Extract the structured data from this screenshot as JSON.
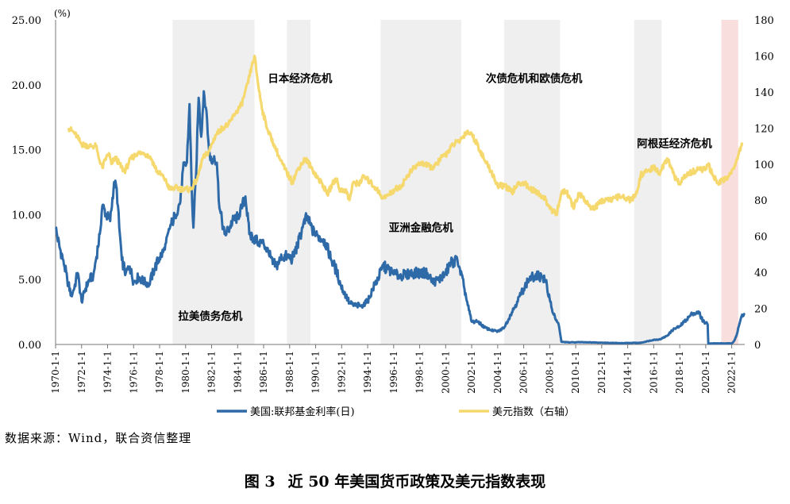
{
  "chart_data": {
    "type": "line",
    "left_unit": "(%)",
    "left_axis": {
      "ylim": [
        0,
        25
      ],
      "ticks": [
        "0.00",
        "5.00",
        "10.00",
        "15.00",
        "20.00",
        "25.00"
      ]
    },
    "right_axis": {
      "ylim": [
        0,
        180
      ],
      "ticks": [
        "0",
        "20",
        "40",
        "60",
        "80",
        "100",
        "120",
        "140",
        "160",
        "180"
      ]
    },
    "x_range": [
      1970.0,
      2023.0
    ],
    "x_ticks": [
      "1970-1-1",
      "1972-1-1",
      "1974-1-1",
      "1976-1-1",
      "1978-1-1",
      "1980-1-1",
      "1982-1-1",
      "1984-1-1",
      "1986-1-1",
      "1988-1-1",
      "1990-1-1",
      "1992-1-1",
      "1994-1-1",
      "1996-1-1",
      "1998-1-1",
      "2000-1-1",
      "2002-1-1",
      "2004-1-1",
      "2006-1-1",
      "2008-1-1",
      "2010-1-1",
      "2012-1-1",
      "2014-1-1",
      "2016-1-1",
      "2018-1-1",
      "2020-1-1",
      "2022-1-1"
    ],
    "shaded_periods": [
      {
        "start": 1979.0,
        "end": 1985.3,
        "color": "#efefef"
      },
      {
        "start": 1987.8,
        "end": 1989.6,
        "color": "#efefef"
      },
      {
        "start": 1995.0,
        "end": 2001.2,
        "color": "#efefef"
      },
      {
        "start": 2004.5,
        "end": 2008.8,
        "color": "#efefef"
      },
      {
        "start": 2014.5,
        "end": 2016.6,
        "color": "#efefef"
      },
      {
        "start": 2021.2,
        "end": 2022.5,
        "color": "#f9dede"
      }
    ],
    "annotations": [
      {
        "text": "拉美债务危机",
        "x": 1981.9,
        "y": 1.9
      },
      {
        "text": "日本经济危机",
        "x": 1988.8,
        "y": 20.2
      },
      {
        "text": "亚洲金融危机",
        "x": 1998.1,
        "y": 8.7
      },
      {
        "text": "次债危机和欧债危机",
        "x": 2006.8,
        "y": 20.2
      },
      {
        "text": "阿根廷经济危机",
        "x": 2017.6,
        "y": 15.2
      }
    ],
    "series": [
      {
        "name": "美国:联邦基金利率(日)",
        "axis": "left",
        "color": "#2e6aa8",
        "points": [
          [
            1970.0,
            9.0
          ],
          [
            1970.3,
            7.5
          ],
          [
            1970.6,
            6.5
          ],
          [
            1970.9,
            5.0
          ],
          [
            1971.2,
            3.8
          ],
          [
            1971.4,
            4.2
          ],
          [
            1971.7,
            5.5
          ],
          [
            1972.0,
            3.3
          ],
          [
            1972.3,
            4.3
          ],
          [
            1972.6,
            5.0
          ],
          [
            1972.9,
            5.3
          ],
          [
            1973.1,
            6.5
          ],
          [
            1973.4,
            8.5
          ],
          [
            1973.6,
            10.7
          ],
          [
            1973.9,
            10.0
          ],
          [
            1974.2,
            9.5
          ],
          [
            1974.5,
            12.5
          ],
          [
            1974.7,
            12.0
          ],
          [
            1974.9,
            9.0
          ],
          [
            1975.1,
            6.5
          ],
          [
            1975.4,
            5.5
          ],
          [
            1975.7,
            6.0
          ],
          [
            1976.0,
            4.8
          ],
          [
            1976.4,
            5.2
          ],
          [
            1976.8,
            4.8
          ],
          [
            1977.2,
            4.7
          ],
          [
            1977.6,
            5.8
          ],
          [
            1978.0,
            6.7
          ],
          [
            1978.4,
            7.3
          ],
          [
            1978.8,
            9.0
          ],
          [
            1979.2,
            10.0
          ],
          [
            1979.6,
            11.0
          ],
          [
            1979.8,
            13.5
          ],
          [
            1980.1,
            14.0
          ],
          [
            1980.3,
            18.5
          ],
          [
            1980.5,
            11.0
          ],
          [
            1980.6,
            9.0
          ],
          [
            1980.8,
            13.0
          ],
          [
            1981.0,
            19.0
          ],
          [
            1981.2,
            16.0
          ],
          [
            1981.4,
            19.5
          ],
          [
            1981.6,
            18.0
          ],
          [
            1981.8,
            15.0
          ],
          [
            1982.0,
            14.0
          ],
          [
            1982.2,
            14.5
          ],
          [
            1982.4,
            14.0
          ],
          [
            1982.6,
            10.5
          ],
          [
            1982.8,
            9.5
          ],
          [
            1983.0,
            8.5
          ],
          [
            1983.3,
            8.8
          ],
          [
            1983.6,
            9.5
          ],
          [
            1984.0,
            9.8
          ],
          [
            1984.3,
            10.5
          ],
          [
            1984.6,
            11.4
          ],
          [
            1984.9,
            8.5
          ],
          [
            1985.2,
            8.2
          ],
          [
            1985.6,
            7.9
          ],
          [
            1986.0,
            7.8
          ],
          [
            1986.4,
            7.0
          ],
          [
            1986.7,
            6.2
          ],
          [
            1987.0,
            6.1
          ],
          [
            1987.4,
            6.7
          ],
          [
            1987.8,
            6.8
          ],
          [
            1988.2,
            6.6
          ],
          [
            1988.6,
            7.6
          ],
          [
            1989.0,
            9.0
          ],
          [
            1989.3,
            9.8
          ],
          [
            1989.6,
            9.2
          ],
          [
            1989.9,
            8.5
          ],
          [
            1990.2,
            8.3
          ],
          [
            1990.6,
            8.1
          ],
          [
            1990.9,
            7.5
          ],
          [
            1991.2,
            6.5
          ],
          [
            1991.6,
            5.7
          ],
          [
            1991.9,
            4.6
          ],
          [
            1992.2,
            4.0
          ],
          [
            1992.6,
            3.2
          ],
          [
            1993.0,
            3.0
          ],
          [
            1993.5,
            3.0
          ],
          [
            1994.0,
            3.3
          ],
          [
            1994.4,
            4.3
          ],
          [
            1994.8,
            5.1
          ],
          [
            1995.2,
            6.0
          ],
          [
            1995.6,
            5.8
          ],
          [
            1996.0,
            5.4
          ],
          [
            1996.5,
            5.3
          ],
          [
            1997.0,
            5.4
          ],
          [
            1997.5,
            5.5
          ],
          [
            1998.0,
            5.5
          ],
          [
            1998.6,
            5.5
          ],
          [
            1999.0,
            4.8
          ],
          [
            1999.5,
            5.0
          ],
          [
            2000.0,
            5.5
          ],
          [
            2000.4,
            6.3
          ],
          [
            2000.9,
            6.5
          ],
          [
            2001.1,
            5.8
          ],
          [
            2001.4,
            4.5
          ],
          [
            2001.7,
            3.0
          ],
          [
            2002.0,
            1.75
          ],
          [
            2002.5,
            1.75
          ],
          [
            2003.0,
            1.3
          ],
          [
            2003.5,
            1.1
          ],
          [
            2004.0,
            1.0
          ],
          [
            2004.5,
            1.3
          ],
          [
            2005.0,
            2.3
          ],
          [
            2005.5,
            3.3
          ],
          [
            2006.0,
            4.3
          ],
          [
            2006.4,
            5.0
          ],
          [
            2006.8,
            5.25
          ],
          [
            2007.4,
            5.25
          ],
          [
            2007.7,
            4.8
          ],
          [
            2008.0,
            3.5
          ],
          [
            2008.3,
            2.3
          ],
          [
            2008.7,
            1.5
          ],
          [
            2008.9,
            0.2
          ],
          [
            2009.5,
            0.16
          ],
          [
            2010.5,
            0.18
          ],
          [
            2012.0,
            0.14
          ],
          [
            2013.5,
            0.1
          ],
          [
            2015.0,
            0.13
          ],
          [
            2015.95,
            0.35
          ],
          [
            2016.5,
            0.4
          ],
          [
            2017.0,
            0.65
          ],
          [
            2017.5,
            1.15
          ],
          [
            2018.0,
            1.4
          ],
          [
            2018.5,
            1.9
          ],
          [
            2019.0,
            2.4
          ],
          [
            2019.5,
            2.4
          ],
          [
            2019.8,
            1.8
          ],
          [
            2020.15,
            1.55
          ],
          [
            2020.2,
            0.08
          ],
          [
            2021.0,
            0.08
          ],
          [
            2022.0,
            0.08
          ],
          [
            2022.2,
            0.3
          ],
          [
            2022.4,
            0.8
          ],
          [
            2022.6,
            1.6
          ],
          [
            2022.8,
            2.3
          ],
          [
            2023.0,
            2.3
          ]
        ]
      },
      {
        "name": "美元指数（右轴）",
        "axis": "right",
        "color": "#f6d96e",
        "points": [
          [
            1971.0,
            120
          ],
          [
            1971.5,
            117
          ],
          [
            1972.0,
            111
          ],
          [
            1972.6,
            110
          ],
          [
            1973.1,
            110
          ],
          [
            1973.3,
            104
          ],
          [
            1973.6,
            98
          ],
          [
            1973.9,
            104
          ],
          [
            1974.1,
            106
          ],
          [
            1974.3,
            100
          ],
          [
            1974.6,
            104
          ],
          [
            1974.9,
            100
          ],
          [
            1975.3,
            96
          ],
          [
            1975.8,
            103
          ],
          [
            1976.3,
            106
          ],
          [
            1976.8,
            106
          ],
          [
            1977.3,
            104
          ],
          [
            1977.8,
            96
          ],
          [
            1978.3,
            93
          ],
          [
            1978.8,
            86
          ],
          [
            1979.2,
            87
          ],
          [
            1979.8,
            86
          ],
          [
            1980.4,
            86
          ],
          [
            1980.9,
            92
          ],
          [
            1981.3,
            103
          ],
          [
            1981.8,
            107
          ],
          [
            1982.3,
            116
          ],
          [
            1982.8,
            120
          ],
          [
            1983.3,
            122
          ],
          [
            1983.8,
            128
          ],
          [
            1984.3,
            133
          ],
          [
            1984.8,
            145
          ],
          [
            1985.1,
            155
          ],
          [
            1985.3,
            160
          ],
          [
            1985.6,
            143
          ],
          [
            1985.9,
            130
          ],
          [
            1986.3,
            119
          ],
          [
            1986.8,
            111
          ],
          [
            1987.3,
            102
          ],
          [
            1987.8,
            95
          ],
          [
            1988.2,
            90
          ],
          [
            1988.7,
            98
          ],
          [
            1989.2,
            103
          ],
          [
            1989.6,
            99
          ],
          [
            1990.1,
            93
          ],
          [
            1990.6,
            88
          ],
          [
            1990.9,
            83
          ],
          [
            1991.3,
            89
          ],
          [
            1991.6,
            92
          ],
          [
            1991.9,
            85
          ],
          [
            1992.3,
            86
          ],
          [
            1992.6,
            80
          ],
          [
            1992.9,
            90
          ],
          [
            1993.3,
            89
          ],
          [
            1993.7,
            93
          ],
          [
            1994.2,
            90
          ],
          [
            1994.7,
            86
          ],
          [
            1995.2,
            81
          ],
          [
            1995.6,
            83
          ],
          [
            1996.1,
            86
          ],
          [
            1996.6,
            88
          ],
          [
            1997.1,
            94
          ],
          [
            1997.6,
            98
          ],
          [
            1998.1,
            101
          ],
          [
            1998.6,
            99
          ],
          [
            1999.1,
            98
          ],
          [
            1999.6,
            103
          ],
          [
            2000.1,
            106
          ],
          [
            2000.6,
            111
          ],
          [
            2001.1,
            113
          ],
          [
            2001.6,
            118
          ],
          [
            2002.0,
            117
          ],
          [
            2002.5,
            110
          ],
          [
            2003.0,
            102
          ],
          [
            2003.5,
            96
          ],
          [
            2004.0,
            88
          ],
          [
            2004.6,
            88
          ],
          [
            2005.1,
            84
          ],
          [
            2005.6,
            90
          ],
          [
            2006.1,
            89
          ],
          [
            2006.6,
            86
          ],
          [
            2007.1,
            84
          ],
          [
            2007.6,
            81
          ],
          [
            2008.1,
            75
          ],
          [
            2008.5,
            72
          ],
          [
            2008.9,
            84
          ],
          [
            2009.3,
            85
          ],
          [
            2009.8,
            76
          ],
          [
            2010.3,
            84
          ],
          [
            2010.7,
            80
          ],
          [
            2011.3,
            75
          ],
          [
            2011.8,
            78
          ],
          [
            2012.3,
            81
          ],
          [
            2012.8,
            80
          ],
          [
            2013.3,
            82
          ],
          [
            2013.8,
            81
          ],
          [
            2014.3,
            80
          ],
          [
            2014.7,
            84
          ],
          [
            2015.0,
            94
          ],
          [
            2015.5,
            96
          ],
          [
            2016.0,
            98
          ],
          [
            2016.5,
            95
          ],
          [
            2016.9,
            102
          ],
          [
            2017.2,
            101
          ],
          [
            2017.6,
            93
          ],
          [
            2018.0,
            89
          ],
          [
            2018.5,
            94
          ],
          [
            2019.0,
            96
          ],
          [
            2019.5,
            97
          ],
          [
            2020.0,
            97
          ],
          [
            2020.2,
            100
          ],
          [
            2020.5,
            94
          ],
          [
            2020.9,
            90
          ],
          [
            2021.3,
            91
          ],
          [
            2021.7,
            93
          ],
          [
            2022.0,
            96
          ],
          [
            2022.4,
            103
          ],
          [
            2022.8,
            112
          ]
        ]
      }
    ]
  },
  "source_text": "数据来源：Wind，联合资信整理",
  "caption": {
    "number": "图 3",
    "text": "近 50 年美国货币政策及美元指数表现"
  }
}
